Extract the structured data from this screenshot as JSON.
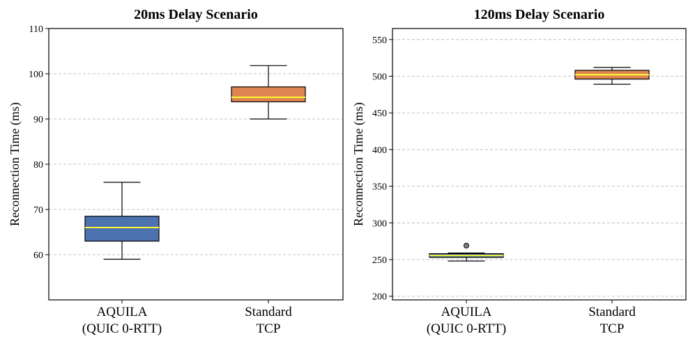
{
  "colors": {
    "aquila": "#4c72b0",
    "tcp": "#dd8452",
    "median": "#ffff33",
    "outlier": "#808080",
    "grid": "#b0b0b0"
  },
  "chart_data": [
    {
      "type": "box",
      "title": "20ms Delay Scenario",
      "xlabel": "",
      "ylabel": "Reconnection Time (ms)",
      "ylim": [
        50,
        110
      ],
      "yticks": [
        60,
        70,
        80,
        90,
        100,
        110
      ],
      "grid": "y-dashed",
      "categories": [
        [
          "AQUILA",
          "(QUIC 0-RTT)"
        ],
        [
          "Standard",
          "TCP"
        ]
      ],
      "boxes": [
        {
          "name": "AQUILA (QUIC 0-RTT)",
          "whisker_low": 59,
          "q1": 63,
          "median": 66,
          "q3": 68.5,
          "whisker_high": 76,
          "outliers": []
        },
        {
          "name": "Standard TCP",
          "whisker_low": 90,
          "q1": 93.8,
          "median": 94.8,
          "q3": 97.1,
          "whisker_high": 101.8,
          "outliers": []
        }
      ]
    },
    {
      "type": "box",
      "title": "120ms Delay Scenario",
      "xlabel": "",
      "ylabel": "Reconnection Time (ms)",
      "ylim": [
        195,
        565
      ],
      "yticks": [
        200,
        250,
        300,
        350,
        400,
        450,
        500,
        550
      ],
      "grid": "y-dashed",
      "categories": [
        [
          "AQUILA",
          "(QUIC 0-RTT)"
        ],
        [
          "Standard",
          "TCP"
        ]
      ],
      "boxes": [
        {
          "name": "AQUILA (QUIC 0-RTT)",
          "whisker_low": 248,
          "q1": 253,
          "median": 255.5,
          "q3": 258,
          "whisker_high": 259,
          "outliers": [
            269
          ]
        },
        {
          "name": "Standard TCP",
          "whisker_low": 489,
          "q1": 496,
          "median": 502,
          "q3": 508,
          "whisker_high": 512,
          "outliers": []
        }
      ]
    }
  ]
}
